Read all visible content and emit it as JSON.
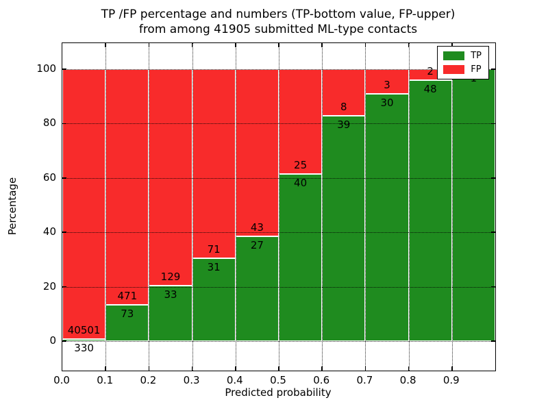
{
  "chart_data": {
    "type": "bar",
    "subtype": "stacked-percentage",
    "title_line1": "TP /FP percentage and numbers (TP-bottom value, FP-upper)",
    "title_line2": "from among 41905 submitted ML-type contacts",
    "xlabel": "Predicted probability",
    "ylabel": "Percentage",
    "x_tick_labels": [
      "0.0",
      "0.1",
      "0.2",
      "0.3",
      "0.4",
      "0.5",
      "0.6",
      "0.7",
      "0.8",
      "0.9"
    ],
    "y_tick_values": [
      0,
      20,
      40,
      60,
      80,
      100
    ],
    "xlim": [
      0.0,
      1.0
    ],
    "ylim": [
      -11,
      110
    ],
    "grid": "dotted, drawn above bars",
    "legend_position": "upper right",
    "bin_width": 0.1,
    "bin_starts": [
      0.0,
      0.1,
      0.2,
      0.3,
      0.4,
      0.5,
      0.6,
      0.7,
      0.8,
      0.9
    ],
    "series": [
      {
        "name": "TP",
        "color": "#1f8b1f",
        "values": [
          330,
          73,
          33,
          31,
          27,
          40,
          39,
          30,
          48,
          1
        ],
        "label_position": "just below TP/FP boundary"
      },
      {
        "name": "FP",
        "color": "#f82b2b",
        "values": [
          40501,
          471,
          129,
          71,
          43,
          25,
          8,
          3,
          2,
          0
        ],
        "label_position": "just above TP/FP boundary",
        "last_label_covered_by_legend": true
      }
    ],
    "tp_percent_of_bin": [
      0.81,
      13.42,
      20.37,
      30.39,
      38.57,
      61.54,
      82.98,
      90.91,
      96.0,
      100.0
    ]
  },
  "colors": {
    "tp_green": "#1f8b1f",
    "fp_red": "#f82b2b",
    "axis": "#000000",
    "background": "#ffffff"
  }
}
